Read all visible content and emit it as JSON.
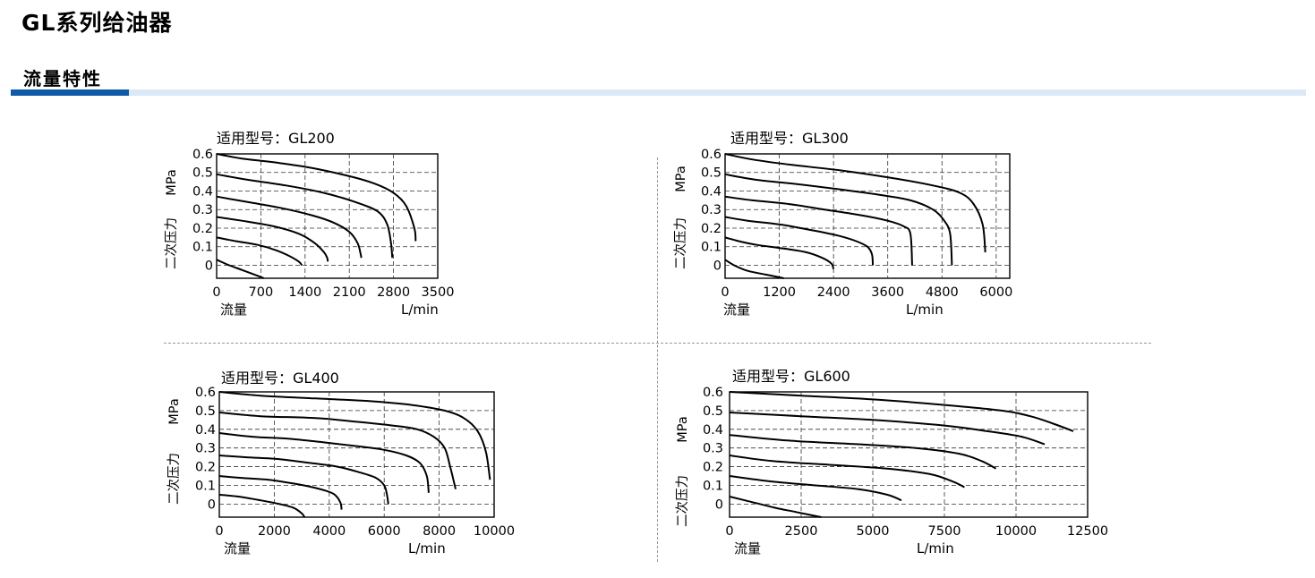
{
  "header": {
    "title": "GL系列给油器",
    "section": "流量特性"
  },
  "chart_data": [
    {
      "type": "line",
      "title": "适用型号：GL200",
      "ylabel": "二次压力 MPa",
      "xlabel": "流量",
      "xunit": "L/min",
      "xticks": [
        "0",
        "700",
        "1400",
        "2100",
        "2800",
        "3500"
      ],
      "yticks": [
        "0.6",
        "0.5",
        "0.4",
        "0.3",
        "0.2",
        "0.1",
        "0"
      ],
      "xlim": [
        0,
        3500
      ],
      "ylim": [
        -0.07,
        0.6
      ],
      "grid": true,
      "series": [
        {
          "x": [
            0,
            400,
            900,
            1500,
            2100,
            2500,
            2800,
            3000,
            3130,
            3150
          ],
          "y": [
            0.6,
            0.575,
            0.555,
            0.525,
            0.48,
            0.44,
            0.39,
            0.32,
            0.2,
            0.13
          ]
        },
        {
          "x": [
            0,
            500,
            1100,
            1700,
            2200,
            2550,
            2700,
            2760,
            2780
          ],
          "y": [
            0.49,
            0.46,
            0.43,
            0.39,
            0.34,
            0.29,
            0.22,
            0.12,
            0.04
          ]
        },
        {
          "x": [
            0,
            500,
            1000,
            1500,
            1850,
            2100,
            2230,
            2280,
            2290
          ],
          "y": [
            0.37,
            0.34,
            0.31,
            0.27,
            0.23,
            0.18,
            0.12,
            0.06,
            0.04
          ]
        },
        {
          "x": [
            0,
            400,
            900,
            1300,
            1550,
            1700,
            1750,
            1760
          ],
          "y": [
            0.26,
            0.24,
            0.21,
            0.17,
            0.12,
            0.07,
            0.04,
            0.02
          ]
        },
        {
          "x": [
            0,
            300,
            650,
            950,
            1150,
            1300,
            1350
          ],
          "y": [
            0.15,
            0.13,
            0.11,
            0.08,
            0.05,
            0.02,
            0.0
          ]
        },
        {
          "x": [
            0,
            200,
            400,
            600,
            750
          ],
          "y": [
            0.03,
            0.0,
            -0.025,
            -0.05,
            -0.07
          ]
        }
      ]
    },
    {
      "type": "line",
      "title": "适用型号：GL300",
      "ylabel": "二次压力 MPa",
      "xlabel": "流量",
      "xunit": "L/min",
      "xticks": [
        "0",
        "1200",
        "2400",
        "3600",
        "4800",
        "6000"
      ],
      "yticks": [
        "0.6",
        "0.5",
        "0.4",
        "0.3",
        "0.2",
        "0.1",
        "0"
      ],
      "xlim": [
        0,
        6300
      ],
      "ylim": [
        -0.07,
        0.6
      ],
      "grid": true,
      "series": [
        {
          "x": [
            0,
            600,
            1500,
            2600,
            3700,
            4600,
            5200,
            5500,
            5700,
            5760
          ],
          "y": [
            0.6,
            0.57,
            0.54,
            0.51,
            0.47,
            0.43,
            0.39,
            0.33,
            0.22,
            0.07
          ]
        },
        {
          "x": [
            0,
            700,
            1500,
            2500,
            3400,
            4100,
            4600,
            4850,
            4980,
            5020
          ],
          "y": [
            0.49,
            0.46,
            0.44,
            0.41,
            0.38,
            0.35,
            0.3,
            0.24,
            0.17,
            0.0
          ]
        },
        {
          "x": [
            0,
            600,
            1400,
            2200,
            3000,
            3600,
            3950,
            4100,
            4140
          ],
          "y": [
            0.37,
            0.35,
            0.33,
            0.3,
            0.27,
            0.24,
            0.21,
            0.17,
            0.0
          ]
        },
        {
          "x": [
            0,
            500,
            1200,
            1900,
            2500,
            2900,
            3150,
            3250,
            3270
          ],
          "y": [
            0.26,
            0.24,
            0.22,
            0.19,
            0.16,
            0.13,
            0.1,
            0.06,
            0.0
          ]
        },
        {
          "x": [
            0,
            300,
            700,
            1300,
            1800,
            2150,
            2350,
            2400
          ],
          "y": [
            0.15,
            0.13,
            0.11,
            0.09,
            0.07,
            0.04,
            0.01,
            -0.02
          ]
        },
        {
          "x": [
            0,
            200,
            500,
            900,
            1300
          ],
          "y": [
            0.03,
            0.0,
            -0.03,
            -0.05,
            -0.07
          ]
        }
      ]
    },
    {
      "type": "line",
      "title": "适用型号：GL400",
      "ylabel": "二次压力 MPa",
      "xlabel": "流量",
      "xunit": "L/min",
      "xticks": [
        "0",
        "2000",
        "4000",
        "6000",
        "8000",
        "10000"
      ],
      "yticks": [
        "0.6",
        "0.5",
        "0.4",
        "0.3",
        "0.2",
        "0.1",
        "0"
      ],
      "xlim": [
        0,
        10000
      ],
      "ylim": [
        -0.07,
        0.6
      ],
      "grid": true,
      "series": [
        {
          "x": [
            0,
            1500,
            3500,
            5500,
            7000,
            8200,
            8900,
            9400,
            9700,
            9850
          ],
          "y": [
            0.6,
            0.58,
            0.565,
            0.55,
            0.53,
            0.5,
            0.46,
            0.39,
            0.28,
            0.13
          ]
        },
        {
          "x": [
            0,
            1500,
            3500,
            5000,
            6300,
            7200,
            7800,
            8200,
            8400,
            8600
          ],
          "y": [
            0.49,
            0.47,
            0.46,
            0.44,
            0.42,
            0.4,
            0.36,
            0.3,
            0.2,
            0.08
          ]
        },
        {
          "x": [
            0,
            1200,
            2500,
            3800,
            5000,
            6000,
            6800,
            7300,
            7550,
            7620
          ],
          "y": [
            0.38,
            0.36,
            0.35,
            0.33,
            0.31,
            0.29,
            0.26,
            0.22,
            0.15,
            0.06
          ]
        },
        {
          "x": [
            0,
            1000,
            2200,
            3300,
            4300,
            5100,
            5700,
            6000,
            6100,
            6150
          ],
          "y": [
            0.26,
            0.25,
            0.24,
            0.22,
            0.2,
            0.17,
            0.14,
            0.1,
            0.05,
            0.0
          ]
        },
        {
          "x": [
            0,
            800,
            1800,
            2700,
            3400,
            3900,
            4200,
            4400,
            4450
          ],
          "y": [
            0.15,
            0.14,
            0.13,
            0.11,
            0.09,
            0.07,
            0.05,
            0.01,
            -0.03
          ]
        },
        {
          "x": [
            0,
            700,
            1500,
            2200,
            2700,
            3000,
            3100
          ],
          "y": [
            0.05,
            0.04,
            0.02,
            0.0,
            -0.02,
            -0.05,
            -0.07
          ]
        }
      ]
    },
    {
      "type": "line",
      "title": "适用型号：GL600",
      "ylabel": "二次压力 MPa",
      "xlabel": "流量",
      "xunit": "L/min",
      "xticks": [
        "0",
        "2500",
        "5000",
        "7500",
        "10000",
        "12500"
      ],
      "yticks": [
        "0.6",
        "0.5",
        "0.4",
        "0.3",
        "0.2",
        "0.1",
        "0"
      ],
      "xlim": [
        0,
        12500
      ],
      "ylim": [
        -0.07,
        0.6
      ],
      "grid": true,
      "series": [
        {
          "x": [
            0,
            2500,
            5000,
            7500,
            9500,
            10500,
            11300,
            12000
          ],
          "y": [
            0.6,
            0.58,
            0.56,
            0.53,
            0.5,
            0.47,
            0.43,
            0.39
          ]
        },
        {
          "x": [
            0,
            2500,
            5000,
            7500,
            9000,
            10200,
            11000
          ],
          "y": [
            0.49,
            0.47,
            0.45,
            0.42,
            0.39,
            0.36,
            0.32
          ]
        },
        {
          "x": [
            0,
            2000,
            4500,
            6500,
            8000,
            8800,
            9300
          ],
          "y": [
            0.37,
            0.34,
            0.32,
            0.3,
            0.27,
            0.23,
            0.19
          ]
        },
        {
          "x": [
            0,
            1500,
            3500,
            5500,
            7000,
            7800,
            8200
          ],
          "y": [
            0.26,
            0.23,
            0.21,
            0.19,
            0.16,
            0.12,
            0.09
          ]
        },
        {
          "x": [
            0,
            1500,
            3000,
            4500,
            5500,
            6000
          ],
          "y": [
            0.15,
            0.12,
            0.1,
            0.08,
            0.05,
            0.02
          ]
        },
        {
          "x": [
            0,
            800,
            1600,
            2400,
            3200
          ],
          "y": [
            0.04,
            0.01,
            -0.02,
            -0.045,
            -0.07
          ]
        }
      ]
    }
  ]
}
